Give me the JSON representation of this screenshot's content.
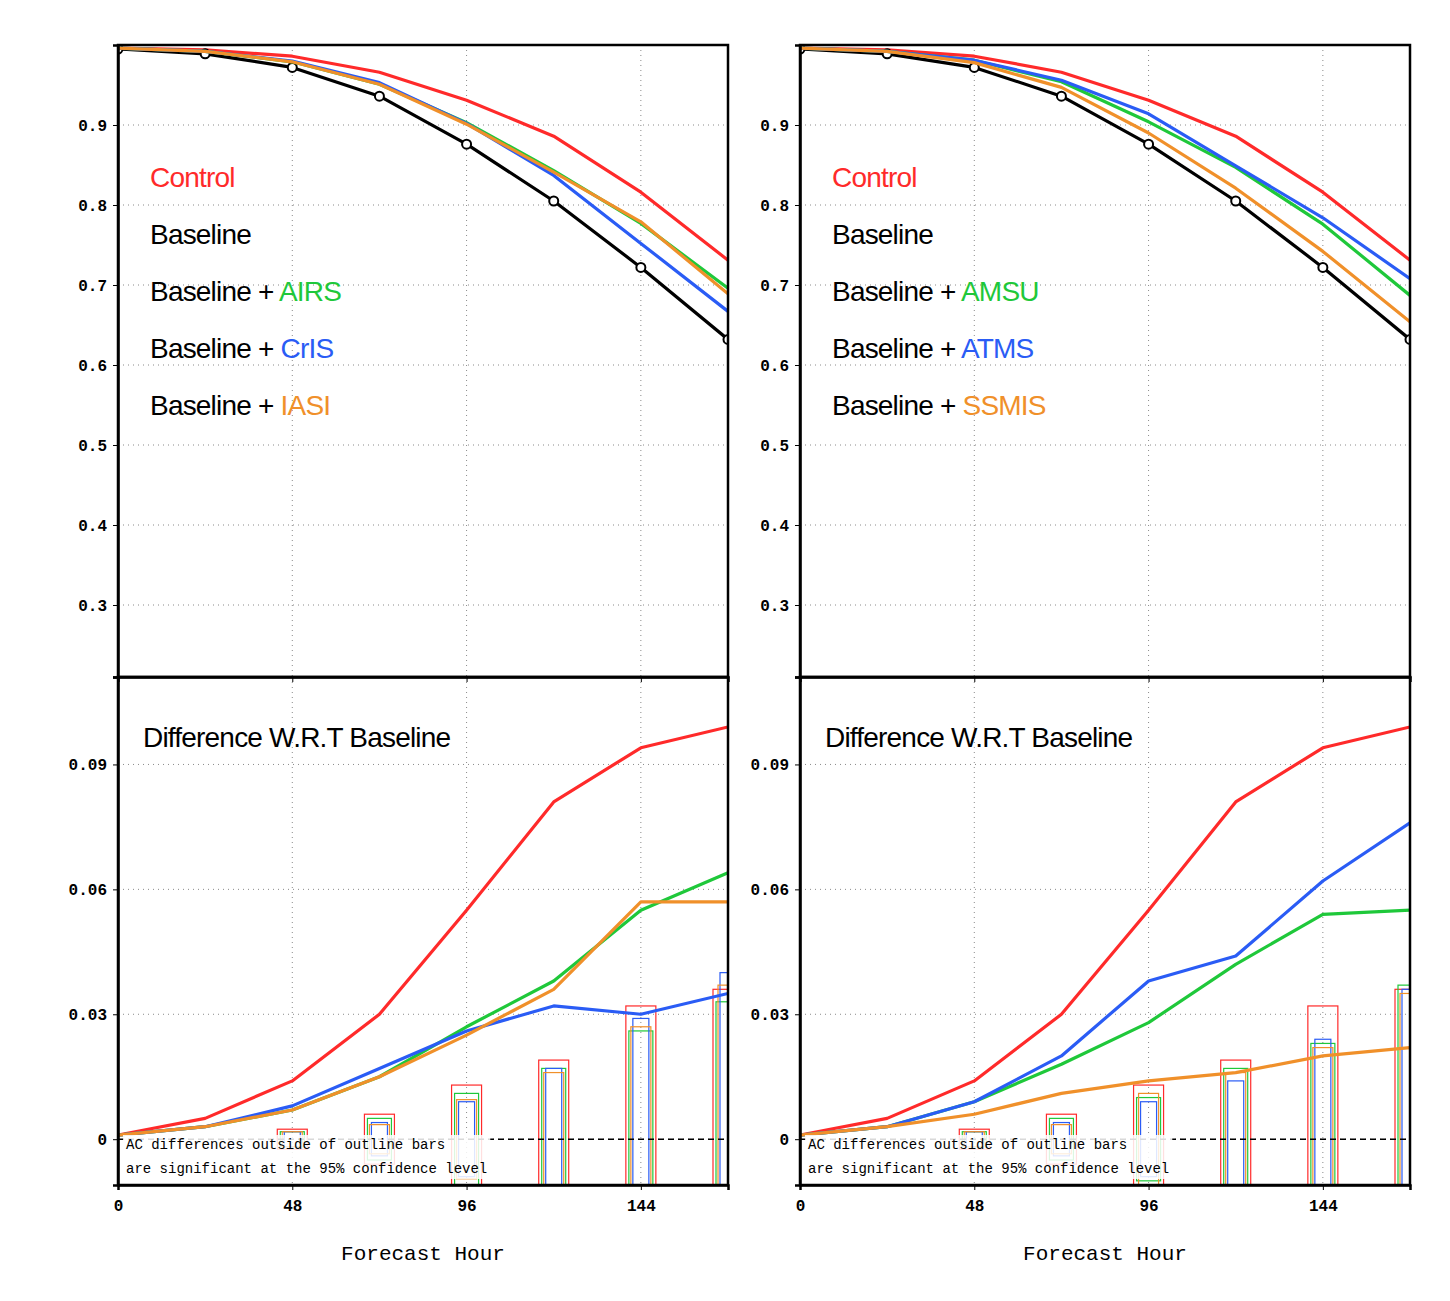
{
  "chart_data": [
    {
      "type": "line",
      "xlim": [
        0,
        168
      ],
      "xticks": [
        0,
        48,
        96,
        144
      ],
      "ylim": [
        0.21,
        1.0
      ],
      "yticks": [
        0.3,
        0.4,
        0.5,
        0.6,
        0.7,
        0.8,
        0.9
      ],
      "grid": true,
      "tick_labels": "y",
      "legend": "upper left",
      "x": [
        0,
        24,
        48,
        72,
        96,
        120,
        144,
        168
      ],
      "series": [
        {
          "name": "Control",
          "color": "#ff2a2a",
          "values": [
            0.996,
            0.994,
            0.986,
            0.966,
            0.931,
            0.886,
            0.816,
            0.731
          ]
        },
        {
          "name": "Baseline",
          "color": "#000000",
          "marker": "circle",
          "values": [
            0.995,
            0.989,
            0.972,
            0.936,
            0.876,
            0.805,
            0.722,
            0.632
          ]
        },
        {
          "name": "Baseline + AIRS",
          "color": "#1fc83a",
          "values": [
            0.996,
            0.992,
            0.979,
            0.951,
            0.903,
            0.843,
            0.777,
            0.696
          ]
        },
        {
          "name": "Baseline + CrIS",
          "color": "#2a5cf5",
          "values": [
            0.996,
            0.992,
            0.98,
            0.953,
            0.902,
            0.837,
            0.752,
            0.667
          ]
        },
        {
          "name": "Baseline + IASI",
          "color": "#f0902a",
          "values": [
            0.996,
            0.992,
            0.979,
            0.951,
            0.901,
            0.841,
            0.779,
            0.689
          ]
        }
      ]
    },
    {
      "type": "line",
      "title": "Difference W.R.T Baseline",
      "annotation": [
        "AC differences outside of outline bars",
        "are significant at the 95% confidence level"
      ],
      "xlabel": "Forecast Hour",
      "xlim": [
        0,
        168
      ],
      "xticks": [
        0,
        48,
        96,
        144
      ],
      "ylim": [
        -0.011,
        0.111
      ],
      "yticks": [
        0,
        0.03,
        0.06,
        0.09
      ],
      "grid": true,
      "x": [
        0,
        24,
        48,
        72,
        96,
        120,
        144,
        168
      ],
      "series": [
        {
          "color": "#000000",
          "line_style": "dashed",
          "values": [
            0,
            0,
            0,
            0,
            0,
            0,
            0,
            0
          ]
        },
        {
          "color": "#ff2a2a",
          "values": [
            0.001,
            0.005,
            0.014,
            0.03,
            0.055,
            0.081,
            0.094,
            0.099
          ],
          "ci": [
            null,
            null,
            0.0024,
            0.006,
            0.013,
            0.019,
            0.032,
            0.036
          ]
        },
        {
          "color": "#1fc83a",
          "values": [
            0.001,
            0.003,
            0.007,
            0.015,
            0.027,
            0.038,
            0.055,
            0.064
          ],
          "ci": [
            null,
            null,
            0.0018,
            0.005,
            0.011,
            0.017,
            0.026,
            0.033
          ]
        },
        {
          "color": "#2a5cf5",
          "values": [
            0.001,
            0.003,
            0.008,
            0.017,
            0.026,
            0.032,
            0.03,
            0.035
          ],
          "ci": [
            null,
            null,
            0.0018,
            0.004,
            0.009,
            0.017,
            0.029,
            0.04
          ]
        },
        {
          "color": "#f0902a",
          "values": [
            0.001,
            0.003,
            0.007,
            0.015,
            0.025,
            0.036,
            0.057,
            0.057
          ],
          "ci": [
            null,
            null,
            0.0018,
            0.0035,
            0.0095,
            0.016,
            0.027,
            0.037
          ]
        }
      ]
    },
    {
      "type": "line",
      "xlim": [
        0,
        168
      ],
      "xticks": [
        0,
        48,
        96,
        144
      ],
      "ylim": [
        0.21,
        1.0
      ],
      "yticks": [
        0.3,
        0.4,
        0.5,
        0.6,
        0.7,
        0.8,
        0.9
      ],
      "grid": true,
      "tick_labels": "y",
      "legend": "upper left",
      "x": [
        0,
        24,
        48,
        72,
        96,
        120,
        144,
        168
      ],
      "series": [
        {
          "name": "Control",
          "color": "#ff2a2a",
          "values": [
            0.996,
            0.994,
            0.986,
            0.966,
            0.931,
            0.886,
            0.816,
            0.731
          ]
        },
        {
          "name": "Baseline",
          "color": "#000000",
          "marker": "circle",
          "values": [
            0.995,
            0.989,
            0.972,
            0.936,
            0.876,
            0.805,
            0.722,
            0.632
          ]
        },
        {
          "name": "Baseline + AMSU",
          "color": "#1fc83a",
          "values": [
            0.996,
            0.992,
            0.981,
            0.954,
            0.904,
            0.847,
            0.776,
            0.687
          ]
        },
        {
          "name": "Baseline + ATMS",
          "color": "#2a5cf5",
          "values": [
            0.996,
            0.992,
            0.981,
            0.956,
            0.914,
            0.849,
            0.784,
            0.708
          ]
        },
        {
          "name": "Baseline + SSMIS",
          "color": "#f0902a",
          "values": [
            0.996,
            0.992,
            0.978,
            0.947,
            0.89,
            0.821,
            0.742,
            0.654
          ]
        }
      ]
    },
    {
      "type": "line",
      "title": "Difference W.R.T Baseline",
      "annotation": [
        "AC differences outside of outline bars",
        "are significant at the 95% confidence level"
      ],
      "xlabel": "Forecast Hour",
      "xlim": [
        0,
        168
      ],
      "xticks": [
        0,
        48,
        96,
        144
      ],
      "ylim": [
        -0.011,
        0.111
      ],
      "yticks": [
        0,
        0.03,
        0.06,
        0.09
      ],
      "grid": true,
      "x": [
        0,
        24,
        48,
        72,
        96,
        120,
        144,
        168
      ],
      "series": [
        {
          "color": "#000000",
          "line_style": "dashed",
          "values": [
            0,
            0,
            0,
            0,
            0,
            0,
            0,
            0
          ]
        },
        {
          "color": "#ff2a2a",
          "values": [
            0.001,
            0.005,
            0.014,
            0.03,
            0.055,
            0.081,
            0.094,
            0.099
          ],
          "ci": [
            null,
            null,
            0.0024,
            0.006,
            0.013,
            0.019,
            0.032,
            0.036
          ]
        },
        {
          "color": "#1fc83a",
          "values": [
            0.001,
            0.003,
            0.009,
            0.018,
            0.028,
            0.042,
            0.054,
            0.055
          ],
          "ci": [
            null,
            null,
            0.0018,
            0.005,
            0.01,
            0.017,
            0.023,
            0.037
          ]
        },
        {
          "color": "#2a5cf5",
          "values": [
            0.001,
            0.003,
            0.009,
            0.02,
            0.038,
            0.044,
            0.062,
            0.076
          ],
          "ci": [
            null,
            null,
            0.0018,
            0.004,
            0.009,
            0.014,
            0.024,
            0.036
          ]
        },
        {
          "color": "#f0902a",
          "values": [
            0.001,
            0.003,
            0.006,
            0.011,
            0.014,
            0.016,
            0.02,
            0.022
          ],
          "ci": [
            null,
            null,
            0.0018,
            0.0035,
            0.011,
            0.016,
            0.022,
            0.035
          ]
        }
      ]
    }
  ]
}
